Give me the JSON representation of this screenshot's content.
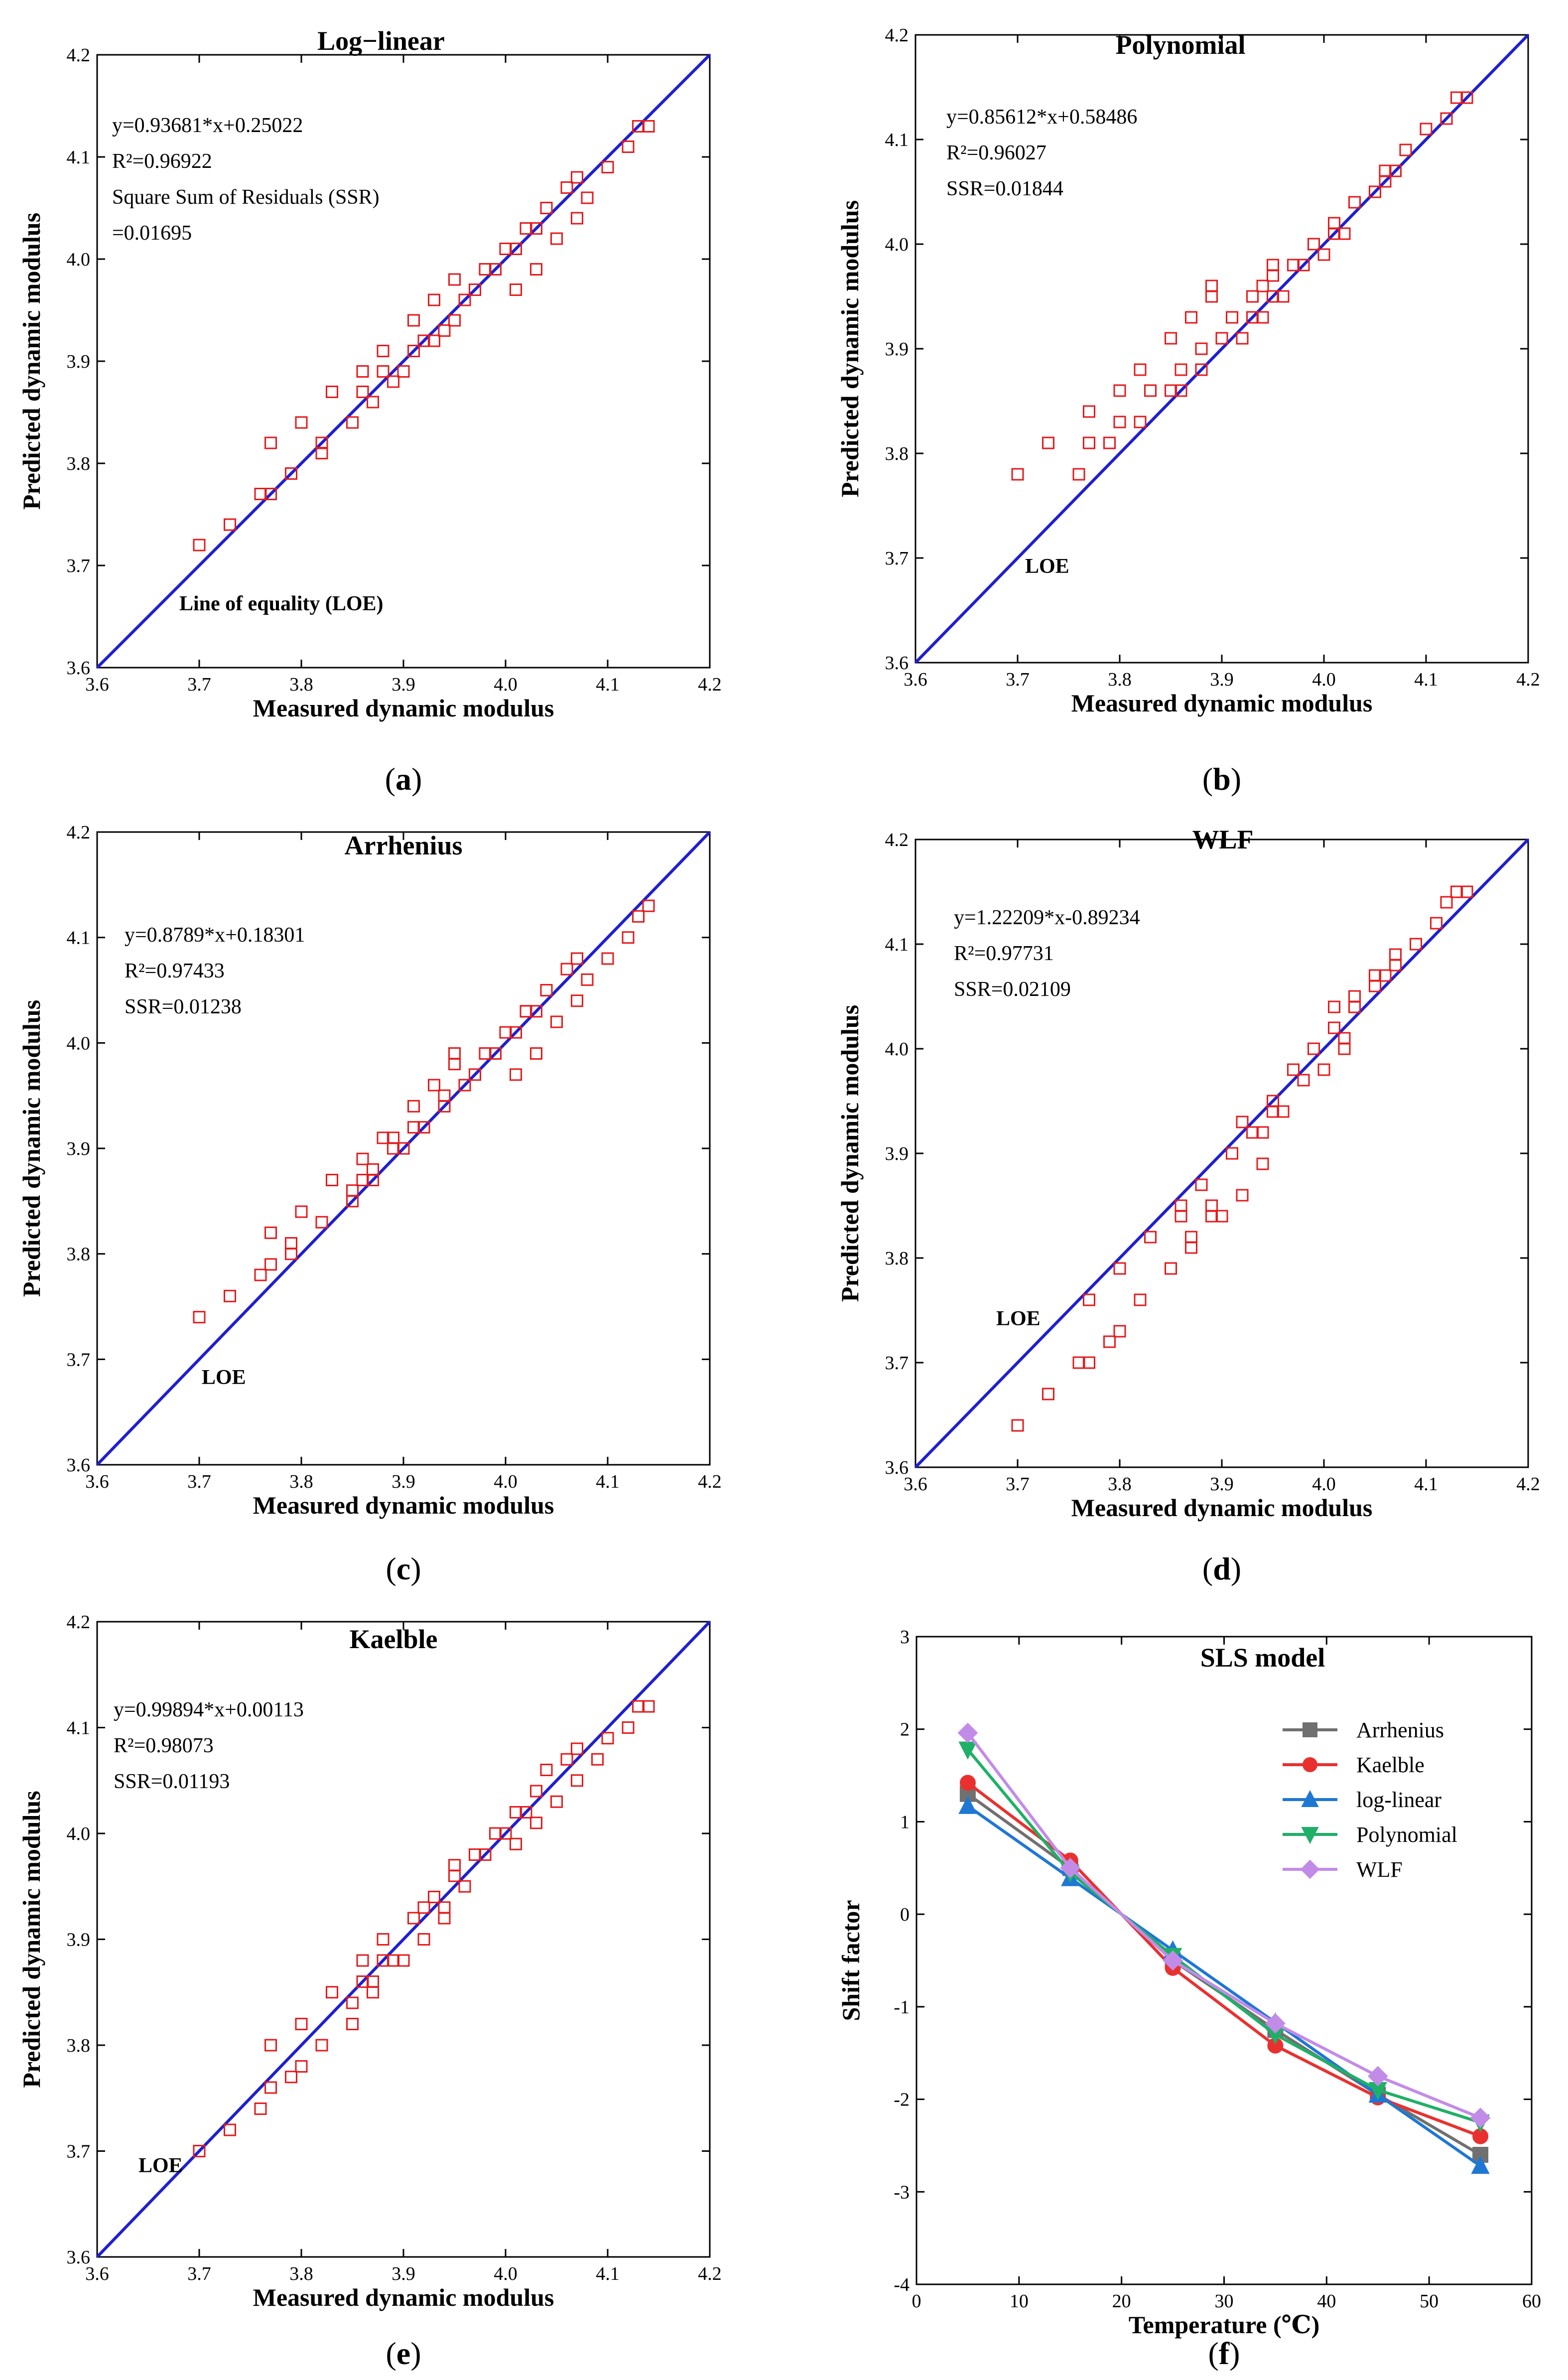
{
  "colors": {
    "axis": "#000000",
    "loe_line": "#1f1fd0",
    "scatter": "#e41a1c",
    "Arrhenius": "#707070",
    "Kaelble": "#e8312f",
    "log-linear": "#1f77d4",
    "Polynomial": "#1fb067",
    "WLF": "#c38be8"
  },
  "chart_data": [
    {
      "id": "a",
      "type": "scatter",
      "title": "Log−linear",
      "xlabel": "Measured dynamic modulus",
      "ylabel": "Predicted dynamic modulus",
      "xlim": [
        3.6,
        4.2
      ],
      "ylim": [
        3.6,
        4.2
      ],
      "xticks": [
        "3.6",
        "3.7",
        "3.8",
        "3.9",
        "4.0",
        "4.1",
        "4.2"
      ],
      "yticks": [
        "3.6",
        "3.7",
        "3.8",
        "3.9",
        "4.0",
        "4.1",
        "4.2"
      ],
      "annotation_lines": [
        "y=0.93681*x+0.25022",
        "R²=0.96922",
        "Square Sum of Residuals (SSR)",
        "=0.01695"
      ],
      "loe_label": "Line of equality (LOE)",
      "caption": "a",
      "points": [
        [
          3.7,
          3.72
        ],
        [
          3.73,
          3.74
        ],
        [
          3.76,
          3.77
        ],
        [
          3.77,
          3.77
        ],
        [
          3.77,
          3.82
        ],
        [
          3.79,
          3.79
        ],
        [
          3.79,
          3.79
        ],
        [
          3.8,
          3.84
        ],
        [
          3.82,
          3.81
        ],
        [
          3.82,
          3.82
        ],
        [
          3.83,
          3.87
        ],
        [
          3.85,
          3.84
        ],
        [
          3.85,
          3.84
        ],
        [
          3.86,
          3.87
        ],
        [
          3.86,
          3.89
        ],
        [
          3.87,
          3.86
        ],
        [
          3.87,
          3.86
        ],
        [
          3.88,
          3.89
        ],
        [
          3.88,
          3.91
        ],
        [
          3.89,
          3.88
        ],
        [
          3.89,
          3.88
        ],
        [
          3.9,
          3.89
        ],
        [
          3.91,
          3.91
        ],
        [
          3.91,
          3.94
        ],
        [
          3.92,
          3.92
        ],
        [
          3.93,
          3.92
        ],
        [
          3.93,
          3.96
        ],
        [
          3.94,
          3.93
        ],
        [
          3.94,
          3.93
        ],
        [
          3.95,
          3.94
        ],
        [
          3.95,
          3.98
        ],
        [
          3.95,
          3.98
        ],
        [
          3.96,
          3.96
        ],
        [
          3.97,
          3.97
        ],
        [
          3.98,
          3.99
        ],
        [
          3.99,
          3.99
        ],
        [
          4.0,
          4.01
        ],
        [
          4.01,
          3.97
        ],
        [
          4.01,
          4.01
        ],
        [
          4.02,
          4.03
        ],
        [
          4.02,
          4.03
        ],
        [
          4.03,
          3.99
        ],
        [
          4.03,
          4.03
        ],
        [
          4.04,
          4.05
        ],
        [
          4.05,
          4.02
        ],
        [
          4.06,
          4.07
        ],
        [
          4.07,
          4.04
        ],
        [
          4.07,
          4.08
        ],
        [
          4.08,
          4.06
        ],
        [
          4.1,
          4.09
        ],
        [
          4.12,
          4.11
        ],
        [
          4.13,
          4.13
        ],
        [
          4.14,
          4.13
        ]
      ]
    },
    {
      "id": "b",
      "type": "scatter",
      "title": "Polynomial",
      "xlabel": "Measured dynamic modulus",
      "ylabel": "Predicted dynamic modulus",
      "xlim": [
        3.6,
        4.2
      ],
      "ylim": [
        3.6,
        4.2
      ],
      "xticks": [
        "3.6",
        "3.7",
        "3.8",
        "3.9",
        "4.0",
        "4.1",
        "4.2"
      ],
      "yticks": [
        "3.6",
        "3.7",
        "3.8",
        "3.9",
        "4.0",
        "4.1",
        "4.2"
      ],
      "annotation_lines": [
        "y=0.85612*x+0.58486",
        "R²=0.96027",
        "SSR=0.01844"
      ],
      "loe_label": "LOE",
      "caption": "b",
      "points": [
        [
          3.7,
          3.78
        ],
        [
          3.73,
          3.81
        ],
        [
          3.76,
          3.78
        ],
        [
          3.77,
          3.84
        ],
        [
          3.77,
          3.81
        ],
        [
          3.79,
          3.81
        ],
        [
          3.8,
          3.83
        ],
        [
          3.8,
          3.86
        ],
        [
          3.82,
          3.83
        ],
        [
          3.82,
          3.88
        ],
        [
          3.83,
          3.86
        ],
        [
          3.85,
          3.86
        ],
        [
          3.85,
          3.91
        ],
        [
          3.86,
          3.86
        ],
        [
          3.86,
          3.88
        ],
        [
          3.87,
          3.93
        ],
        [
          3.88,
          3.88
        ],
        [
          3.88,
          3.9
        ],
        [
          3.89,
          3.95
        ],
        [
          3.89,
          3.96
        ],
        [
          3.9,
          3.91
        ],
        [
          3.91,
          3.93
        ],
        [
          3.92,
          3.91
        ],
        [
          3.93,
          3.93
        ],
        [
          3.93,
          3.95
        ],
        [
          3.94,
          3.93
        ],
        [
          3.94,
          3.96
        ],
        [
          3.95,
          3.95
        ],
        [
          3.95,
          3.97
        ],
        [
          3.95,
          3.98
        ],
        [
          3.96,
          3.95
        ],
        [
          3.97,
          3.98
        ],
        [
          3.98,
          3.98
        ],
        [
          3.99,
          4.0
        ],
        [
          4.0,
          3.99
        ],
        [
          4.01,
          4.01
        ],
        [
          4.01,
          4.02
        ],
        [
          4.02,
          4.01
        ],
        [
          4.03,
          4.04
        ],
        [
          4.03,
          4.04
        ],
        [
          4.05,
          4.05
        ],
        [
          4.06,
          4.06
        ],
        [
          4.06,
          4.07
        ],
        [
          4.07,
          4.07
        ],
        [
          4.08,
          4.09
        ],
        [
          4.1,
          4.11
        ],
        [
          4.12,
          4.12
        ],
        [
          4.13,
          4.14
        ],
        [
          4.14,
          4.14
        ]
      ]
    },
    {
      "id": "c",
      "type": "scatter",
      "title": "Arrhenius",
      "xlabel": "Measured dynamic modulus",
      "ylabel": "Predicted dynamic modulus",
      "xlim": [
        3.6,
        4.2
      ],
      "ylim": [
        3.6,
        4.2
      ],
      "xticks": [
        "3.6",
        "3.7",
        "3.8",
        "3.9",
        "4.0",
        "4.1",
        "4.2"
      ],
      "yticks": [
        "3.6",
        "3.7",
        "3.8",
        "3.9",
        "4.0",
        "4.1",
        "4.2"
      ],
      "annotation_lines": [
        "y=0.8789*x+0.18301",
        "R²=0.97433",
        "SSR=0.01238"
      ],
      "loe_label": "LOE",
      "caption": "c",
      "points": [
        [
          3.7,
          3.74
        ],
        [
          3.73,
          3.76
        ],
        [
          3.76,
          3.78
        ],
        [
          3.77,
          3.79
        ],
        [
          3.77,
          3.82
        ],
        [
          3.79,
          3.8
        ],
        [
          3.79,
          3.81
        ],
        [
          3.8,
          3.84
        ],
        [
          3.82,
          3.83
        ],
        [
          3.83,
          3.87
        ],
        [
          3.85,
          3.85
        ],
        [
          3.85,
          3.86
        ],
        [
          3.86,
          3.87
        ],
        [
          3.86,
          3.89
        ],
        [
          3.87,
          3.87
        ],
        [
          3.87,
          3.88
        ],
        [
          3.88,
          3.91
        ],
        [
          3.89,
          3.9
        ],
        [
          3.89,
          3.91
        ],
        [
          3.9,
          3.9
        ],
        [
          3.91,
          3.94
        ],
        [
          3.91,
          3.92
        ],
        [
          3.92,
          3.92
        ],
        [
          3.93,
          3.96
        ],
        [
          3.94,
          3.94
        ],
        [
          3.94,
          3.95
        ],
        [
          3.95,
          3.98
        ],
        [
          3.95,
          3.99
        ],
        [
          3.96,
          3.96
        ],
        [
          3.97,
          3.97
        ],
        [
          3.98,
          3.99
        ],
        [
          3.99,
          3.99
        ],
        [
          4.0,
          4.01
        ],
        [
          4.01,
          3.97
        ],
        [
          4.01,
          4.01
        ],
        [
          4.02,
          4.03
        ],
        [
          4.02,
          4.03
        ],
        [
          4.03,
          3.99
        ],
        [
          4.03,
          4.03
        ],
        [
          4.04,
          4.05
        ],
        [
          4.05,
          4.02
        ],
        [
          4.06,
          4.07
        ],
        [
          4.07,
          4.04
        ],
        [
          4.07,
          4.08
        ],
        [
          4.08,
          4.06
        ],
        [
          4.1,
          4.08
        ],
        [
          4.12,
          4.1
        ],
        [
          4.13,
          4.12
        ],
        [
          4.14,
          4.13
        ]
      ]
    },
    {
      "id": "d",
      "type": "scatter",
      "title": "WLF",
      "xlabel": "Measured dynamic modulus",
      "ylabel": "Predicted dynamic modulus",
      "xlim": [
        3.6,
        4.2
      ],
      "ylim": [
        3.6,
        4.2
      ],
      "xticks": [
        "3.6",
        "3.7",
        "3.8",
        "3.9",
        "4.0",
        "4.1",
        "4.2"
      ],
      "yticks": [
        "3.6",
        "3.7",
        "3.8",
        "3.9",
        "4.0",
        "4.1",
        "4.2"
      ],
      "annotation_lines": [
        "y=1.22209*x-0.89234",
        "R²=0.97731",
        "SSR=0.02109"
      ],
      "loe_label": "LOE",
      "caption": "d",
      "points": [
        [
          3.7,
          3.64
        ],
        [
          3.73,
          3.67
        ],
        [
          3.76,
          3.7
        ],
        [
          3.77,
          3.7
        ],
        [
          3.77,
          3.76
        ],
        [
          3.79,
          3.72
        ],
        [
          3.8,
          3.73
        ],
        [
          3.8,
          3.79
        ],
        [
          3.82,
          3.76
        ],
        [
          3.82,
          3.76
        ],
        [
          3.83,
          3.82
        ],
        [
          3.85,
          3.79
        ],
        [
          3.85,
          3.79
        ],
        [
          3.86,
          3.84
        ],
        [
          3.86,
          3.85
        ],
        [
          3.87,
          3.81
        ],
        [
          3.87,
          3.82
        ],
        [
          3.88,
          3.87
        ],
        [
          3.88,
          3.87
        ],
        [
          3.89,
          3.84
        ],
        [
          3.89,
          3.85
        ],
        [
          3.9,
          3.84
        ],
        [
          3.91,
          3.9
        ],
        [
          3.91,
          3.9
        ],
        [
          3.92,
          3.86
        ],
        [
          3.92,
          3.93
        ],
        [
          3.93,
          3.92
        ],
        [
          3.94,
          3.89
        ],
        [
          3.94,
          3.89
        ],
        [
          3.94,
          3.92
        ],
        [
          3.95,
          3.95
        ],
        [
          3.95,
          3.94
        ],
        [
          3.96,
          3.94
        ],
        [
          3.97,
          3.98
        ],
        [
          3.98,
          3.97
        ],
        [
          3.99,
          4.0
        ],
        [
          4.0,
          3.98
        ],
        [
          4.01,
          4.02
        ],
        [
          4.01,
          4.04
        ],
        [
          4.02,
          4.0
        ],
        [
          4.02,
          4.01
        ],
        [
          4.03,
          4.04
        ],
        [
          4.03,
          4.05
        ],
        [
          4.05,
          4.07
        ],
        [
          4.05,
          4.06
        ],
        [
          4.06,
          4.07
        ],
        [
          4.07,
          4.08
        ],
        [
          4.07,
          4.09
        ],
        [
          4.09,
          4.1
        ],
        [
          4.11,
          4.12
        ],
        [
          4.12,
          4.14
        ],
        [
          4.13,
          4.15
        ],
        [
          4.14,
          4.15
        ]
      ]
    },
    {
      "id": "e",
      "type": "scatter",
      "title": "Kaelble",
      "xlabel": "Measured dynamic modulus",
      "ylabel": "Predicted dynamic modulus",
      "xlim": [
        3.6,
        4.2
      ],
      "ylim": [
        3.6,
        4.2
      ],
      "xticks": [
        "3.6",
        "3.7",
        "3.8",
        "3.9",
        "4.0",
        "4.1",
        "4.2"
      ],
      "yticks": [
        "3.6",
        "3.7",
        "3.8",
        "3.9",
        "4.0",
        "4.1",
        "4.2"
      ],
      "annotation_lines": [
        "y=0.99894*x+0.00113",
        "R²=0.98073",
        "SSR=0.01193"
      ],
      "loe_label": "LOE",
      "caption": "e",
      "points": [
        [
          3.7,
          3.7
        ],
        [
          3.73,
          3.72
        ],
        [
          3.76,
          3.74
        ],
        [
          3.77,
          3.76
        ],
        [
          3.77,
          3.8
        ],
        [
          3.79,
          3.77
        ],
        [
          3.8,
          3.78
        ],
        [
          3.8,
          3.82
        ],
        [
          3.82,
          3.8
        ],
        [
          3.82,
          3.8
        ],
        [
          3.83,
          3.85
        ],
        [
          3.85,
          3.82
        ],
        [
          3.85,
          3.84
        ],
        [
          3.86,
          3.86
        ],
        [
          3.86,
          3.88
        ],
        [
          3.87,
          3.85
        ],
        [
          3.87,
          3.86
        ],
        [
          3.88,
          3.88
        ],
        [
          3.88,
          3.9
        ],
        [
          3.89,
          3.88
        ],
        [
          3.9,
          3.88
        ],
        [
          3.91,
          3.92
        ],
        [
          3.91,
          3.92
        ],
        [
          3.92,
          3.9
        ],
        [
          3.92,
          3.93
        ],
        [
          3.93,
          3.94
        ],
        [
          3.94,
          3.92
        ],
        [
          3.94,
          3.93
        ],
        [
          3.95,
          3.96
        ],
        [
          3.95,
          3.97
        ],
        [
          3.96,
          3.95
        ],
        [
          3.97,
          3.98
        ],
        [
          3.98,
          3.98
        ],
        [
          3.99,
          4.0
        ],
        [
          4.0,
          4.0
        ],
        [
          4.01,
          3.99
        ],
        [
          4.01,
          4.02
        ],
        [
          4.02,
          4.02
        ],
        [
          4.03,
          4.01
        ],
        [
          4.03,
          4.04
        ],
        [
          4.04,
          4.06
        ],
        [
          4.05,
          4.03
        ],
        [
          4.06,
          4.07
        ],
        [
          4.07,
          4.05
        ],
        [
          4.07,
          4.08
        ],
        [
          4.09,
          4.07
        ],
        [
          4.1,
          4.09
        ],
        [
          4.12,
          4.1
        ],
        [
          4.13,
          4.12
        ],
        [
          4.14,
          4.12
        ]
      ]
    },
    {
      "id": "f",
      "type": "line",
      "title": "SLS model",
      "xlabel": "Temperature (℃)",
      "ylabel": "Shift factor",
      "xlim": [
        0,
        60
      ],
      "ylim": [
        -4,
        3
      ],
      "xticks": [
        "0",
        "10",
        "20",
        "30",
        "40",
        "50",
        "60"
      ],
      "yticks": [
        "-4",
        "-3",
        "-2",
        "-1",
        "0",
        "1",
        "2",
        "3"
      ],
      "caption": "f",
      "x": [
        5,
        15,
        25,
        35,
        45,
        55
      ],
      "series": [
        {
          "name": "Arrhenius",
          "marker": "square",
          "values": [
            1.3,
            0.5,
            -0.5,
            -1.25,
            -1.95,
            -2.6
          ]
        },
        {
          "name": "Kaelble",
          "marker": "circle",
          "values": [
            1.42,
            0.58,
            -0.58,
            -1.42,
            -1.98,
            -2.4
          ]
        },
        {
          "name": "log-linear",
          "marker": "triangle-up",
          "values": [
            1.17,
            0.39,
            -0.39,
            -1.17,
            -1.95,
            -2.72
          ]
        },
        {
          "name": "Polynomial",
          "marker": "triangle-down",
          "values": [
            1.78,
            0.45,
            -0.45,
            -1.3,
            -1.9,
            -2.25
          ]
        },
        {
          "name": "WLF",
          "marker": "diamond",
          "values": [
            1.96,
            0.5,
            -0.5,
            -1.18,
            -1.75,
            -2.2
          ]
        }
      ]
    }
  ]
}
